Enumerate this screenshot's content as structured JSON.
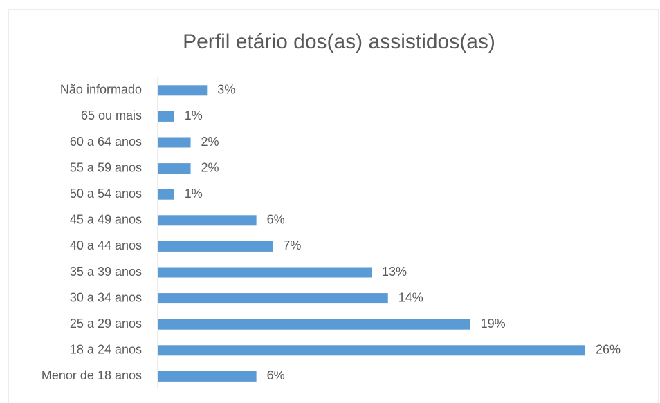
{
  "chart_data": {
    "type": "bar",
    "orientation": "horizontal",
    "title": "Perfil etário dos(as) assistidos(as)",
    "categories": [
      "Não informado",
      "65 ou mais",
      "60 a 64 anos",
      "55 a 59 anos",
      "50 a 54 anos",
      "45 a 49 anos",
      "40 a 44 anos",
      "35 a 39 anos",
      "30 a 34 anos",
      "25 a 29 anos",
      "18 a 24 anos",
      "Menor de 18 anos"
    ],
    "values": [
      3,
      1,
      2,
      2,
      1,
      6,
      7,
      13,
      14,
      19,
      26,
      6
    ],
    "value_labels": [
      "3%",
      "1%",
      "2%",
      "2%",
      "1%",
      "6%",
      "7%",
      "13%",
      "14%",
      "19%",
      "26%",
      "6%"
    ],
    "color": "#5b9bd5"
  }
}
